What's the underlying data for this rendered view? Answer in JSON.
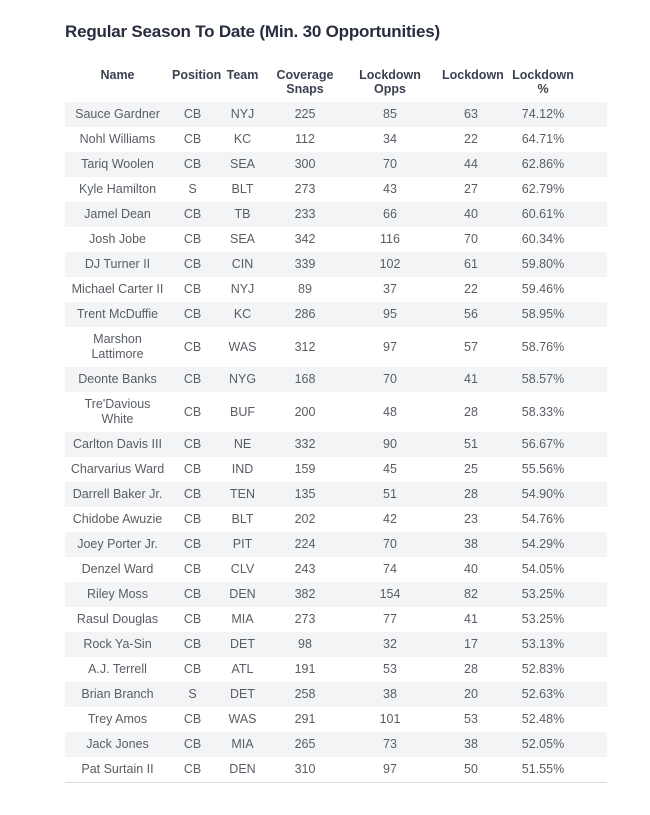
{
  "colors": {
    "background": "#ffffff",
    "title": "#272d3f",
    "header_text": "#3a4150",
    "body_text": "#585d64",
    "row_stripe": "#f3f4f5",
    "table_border": "#d8dadd"
  },
  "chart_data": {
    "type": "table",
    "title": "Regular Season To Date (Min. 30 Opportunities)",
    "columns": [
      "Name",
      "Position",
      "Team",
      "Coverage\nSnaps",
      "Lockdown\nOpps",
      "Lockdown",
      "Lockdown\n%"
    ],
    "rows": [
      [
        "Sauce Gardner",
        "CB",
        "NYJ",
        225,
        85,
        63,
        "74.12%"
      ],
      [
        "Nohl Williams",
        "CB",
        "KC",
        112,
        34,
        22,
        "64.71%"
      ],
      [
        "Tariq Woolen",
        "CB",
        "SEA",
        300,
        70,
        44,
        "62.86%"
      ],
      [
        "Kyle Hamilton",
        "S",
        "BLT",
        273,
        43,
        27,
        "62.79%"
      ],
      [
        "Jamel Dean",
        "CB",
        "TB",
        233,
        66,
        40,
        "60.61%"
      ],
      [
        "Josh Jobe",
        "CB",
        "SEA",
        342,
        116,
        70,
        "60.34%"
      ],
      [
        "DJ Turner II",
        "CB",
        "CIN",
        339,
        102,
        61,
        "59.80%"
      ],
      [
        "Michael Carter II",
        "CB",
        "NYJ",
        89,
        37,
        22,
        "59.46%"
      ],
      [
        "Trent McDuffie",
        "CB",
        "KC",
        286,
        95,
        56,
        "58.95%"
      ],
      [
        "Marshon\nLattimore",
        "CB",
        "WAS",
        312,
        97,
        57,
        "58.76%"
      ],
      [
        "Deonte Banks",
        "CB",
        "NYG",
        168,
        70,
        41,
        "58.57%"
      ],
      [
        "Tre'Davious\nWhite",
        "CB",
        "BUF",
        200,
        48,
        28,
        "58.33%"
      ],
      [
        "Carlton Davis III",
        "CB",
        "NE",
        332,
        90,
        51,
        "56.67%"
      ],
      [
        "Charvarius Ward",
        "CB",
        "IND",
        159,
        45,
        25,
        "55.56%"
      ],
      [
        "Darrell Baker Jr.",
        "CB",
        "TEN",
        135,
        51,
        28,
        "54.90%"
      ],
      [
        "Chidobe Awuzie",
        "CB",
        "BLT",
        202,
        42,
        23,
        "54.76%"
      ],
      [
        "Joey Porter Jr.",
        "CB",
        "PIT",
        224,
        70,
        38,
        "54.29%"
      ],
      [
        "Denzel Ward",
        "CB",
        "CLV",
        243,
        74,
        40,
        "54.05%"
      ],
      [
        "Riley Moss",
        "CB",
        "DEN",
        382,
        154,
        82,
        "53.25%"
      ],
      [
        "Rasul Douglas",
        "CB",
        "MIA",
        273,
        77,
        41,
        "53.25%"
      ],
      [
        "Rock Ya-Sin",
        "CB",
        "DET",
        98,
        32,
        17,
        "53.13%"
      ],
      [
        "A.J. Terrell",
        "CB",
        "ATL",
        191,
        53,
        28,
        "52.83%"
      ],
      [
        "Brian Branch",
        "S",
        "DET",
        258,
        38,
        20,
        "52.63%"
      ],
      [
        "Trey Amos",
        "CB",
        "WAS",
        291,
        101,
        53,
        "52.48%"
      ],
      [
        "Jack Jones",
        "CB",
        "MIA",
        265,
        73,
        38,
        "52.05%"
      ],
      [
        "Pat Surtain II",
        "CB",
        "DEN",
        310,
        97,
        50,
        "51.55%"
      ]
    ]
  }
}
